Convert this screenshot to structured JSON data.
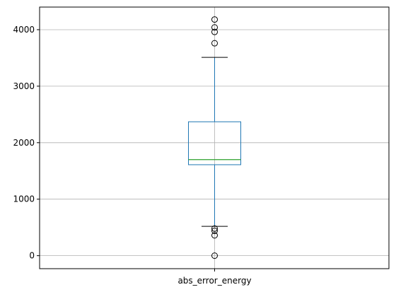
{
  "chart_data": {
    "type": "box",
    "title": "",
    "xlabel": "",
    "ylabel": "",
    "categories": [
      "abs_error_energy"
    ],
    "ylim": [
      -230,
      4400
    ],
    "yticks": [
      0,
      1000,
      2000,
      3000,
      4000
    ],
    "grid": true,
    "box": {
      "whisker_low": 520,
      "q1": 1610,
      "median": 1700,
      "q3": 2370,
      "whisker_high": 3510,
      "outliers": [
        4180,
        4040,
        3960,
        3760,
        480,
        440,
        360,
        0
      ]
    },
    "colors": {
      "box": "#1f77b4",
      "whisker": "#1f77b4",
      "cap": "#000000",
      "median": "#2ca02c",
      "grid": "#b0b0b0",
      "axes": "#000000"
    }
  }
}
